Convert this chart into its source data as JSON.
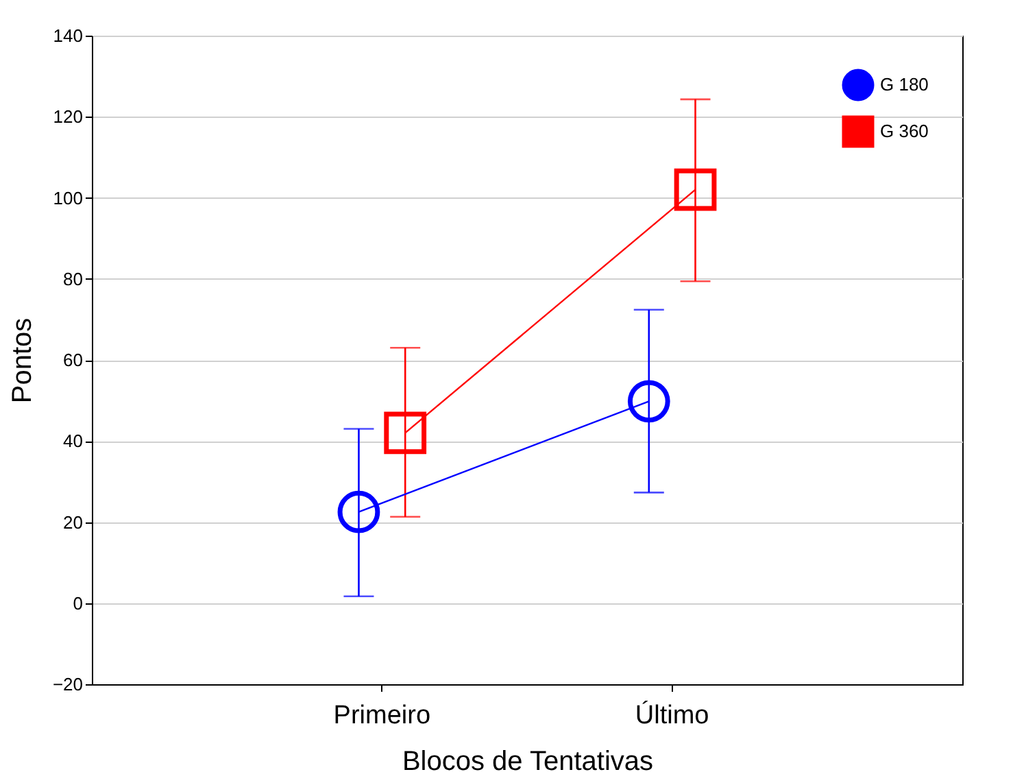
{
  "chart_data": {
    "type": "line",
    "xlabel": "Blocos de Tentativas",
    "ylabel": "Pontos",
    "categories": [
      "Primeiro",
      "Último"
    ],
    "series": [
      {
        "name": "G 180",
        "color": "#0000ff",
        "marker": "circle",
        "values": [
          22.5,
          49.8
        ],
        "errors": [
          [
            1.7,
            43
          ],
          [
            27.3,
            72.4
          ]
        ]
      },
      {
        "name": "G 360",
        "color": "#ff0000",
        "marker": "square",
        "values": [
          42,
          102
        ],
        "errors": [
          [
            21.3,
            63
          ],
          [
            79.4,
            124.3
          ]
        ]
      }
    ],
    "ylim": [
      -20,
      140
    ],
    "yticks": [
      -20,
      0,
      20,
      40,
      60,
      80,
      100,
      120,
      140
    ],
    "grid": "y",
    "legend": "top right"
  }
}
